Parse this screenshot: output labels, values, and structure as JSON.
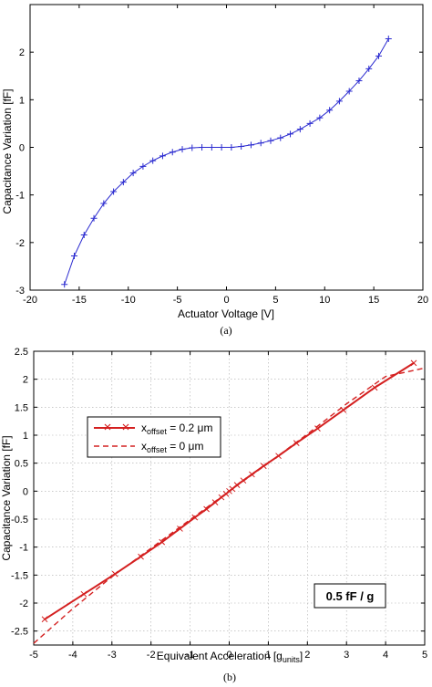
{
  "chart_data": [
    {
      "type": "line",
      "caption": "(a)",
      "xlabel": "Actuator Voltage [V]",
      "ylabel": "Capacitance Variation [fF]",
      "xlim": [
        -20,
        20
      ],
      "ylim": [
        -3,
        3
      ],
      "xticks": [
        -20,
        -15,
        -10,
        -5,
        0,
        5,
        10,
        15,
        20
      ],
      "yticks": [
        -3,
        -2,
        -1,
        0,
        1,
        2
      ],
      "grid": false,
      "series": [
        {
          "color": "#2b2bd0",
          "marker": "plus",
          "x": [
            -16.5,
            -15.5,
            -14.5,
            -13.5,
            -12.5,
            -11.5,
            -10.5,
            -9.5,
            -8.5,
            -7.5,
            -6.5,
            -5.5,
            -4.5,
            -3.5,
            -2.5,
            -1.5,
            -0.5,
            0.5,
            1.5,
            2.5,
            3.5,
            4.5,
            5.5,
            6.5,
            7.5,
            8.5,
            9.5,
            10.5,
            11.5,
            12.5,
            13.5,
            14.5,
            15.5,
            16.5
          ],
          "y": [
            -2.88,
            -2.28,
            -1.84,
            -1.49,
            -1.18,
            -0.93,
            -0.73,
            -0.54,
            -0.4,
            -0.28,
            -0.18,
            -0.1,
            -0.04,
            -0.01,
            0.0,
            0.0,
            0.0,
            0.0,
            0.02,
            0.05,
            0.09,
            0.14,
            0.2,
            0.28,
            0.38,
            0.5,
            0.62,
            0.78,
            0.97,
            1.18,
            1.4,
            1.65,
            1.92,
            2.28
          ]
        }
      ]
    },
    {
      "type": "line",
      "caption": "(b)",
      "xlabel": "Equivalent Acceleration [g",
      "xlabel_sub": "units",
      "xlabel_end": "]",
      "ylabel": "Capacitance Variation [fF]",
      "xlim": [
        -5,
        5
      ],
      "ylim": [
        -2.75,
        2.5
      ],
      "xticks": [
        -5,
        -4,
        -3,
        -2,
        -1,
        0,
        1,
        2,
        3,
        4,
        5
      ],
      "yticks": [
        -2.5,
        -2,
        -1.5,
        -1,
        -0.5,
        0,
        0.5,
        1,
        1.5,
        2,
        2.5
      ],
      "grid": true,
      "legend": "upper-left",
      "annotation": "0.5 fF / g",
      "series": [
        {
          "name_main": "x",
          "name_sub": "offset",
          "name_rest": " = 0.2 μm",
          "color": "#d42020",
          "style": "solid",
          "marker": "x",
          "x": [
            -4.72,
            -3.72,
            -2.92,
            -2.26,
            -1.72,
            -1.26,
            -0.88,
            -0.58,
            -0.36,
            -0.2,
            -0.08,
            0.0,
            0.08,
            0.2,
            0.36,
            0.58,
            0.88,
            1.26,
            1.72,
            2.26,
            2.92,
            3.72,
            4.72
          ],
          "y": [
            -2.29,
            -1.84,
            -1.48,
            -1.17,
            -0.91,
            -0.67,
            -0.47,
            -0.32,
            -0.2,
            -0.11,
            -0.05,
            0.0,
            0.04,
            0.11,
            0.19,
            0.3,
            0.45,
            0.63,
            0.86,
            1.12,
            1.45,
            1.85,
            2.29
          ]
        },
        {
          "name_main": "x",
          "name_sub": "offset",
          "name_rest": " = 0 μm",
          "color": "#d42020",
          "style": "dashed",
          "x": [
            -5.0,
            -4.0,
            -3.0,
            -2.0,
            -1.0,
            0.0,
            1.0,
            2.0,
            3.0,
            4.0,
            5.0
          ],
          "y": [
            -2.72,
            -2.1,
            -1.53,
            -1.02,
            -0.51,
            0.0,
            0.5,
            1.02,
            1.56,
            2.05,
            2.2
          ]
        }
      ]
    }
  ]
}
